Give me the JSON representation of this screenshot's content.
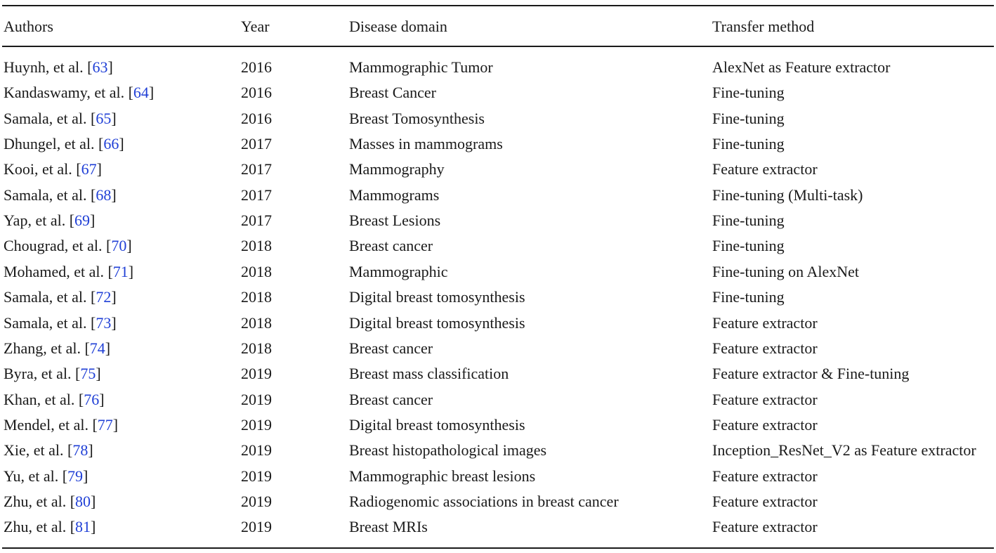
{
  "table": {
    "headers": {
      "authors": "Authors",
      "year": "Year",
      "domain": "Disease domain",
      "method": "Transfer method"
    },
    "rows": [
      {
        "author": "Huynh, et al. ",
        "ref": "63",
        "year": "2016",
        "domain": "Mammographic Tumor",
        "method": "AlexNet as Feature extractor"
      },
      {
        "author": "Kandaswamy, et al. ",
        "ref": "64",
        "year": "2016",
        "domain": "Breast Cancer",
        "method": "Fine-tuning"
      },
      {
        "author": "Samala, et al. ",
        "ref": "65",
        "year": "2016",
        "domain": "Breast Tomosynthesis",
        "method": "Fine-tuning"
      },
      {
        "author": "Dhungel, et al. ",
        "ref": "66",
        "year": "2017",
        "domain": "Masses in mammograms",
        "method": "Fine-tuning"
      },
      {
        "author": "Kooi, et al. ",
        "ref": "67",
        "year": "2017",
        "domain": "Mammography",
        "method": "Feature extractor"
      },
      {
        "author": "Samala, et al. ",
        "ref": "68",
        "year": "2017",
        "domain": "Mammograms",
        "method": "Fine-tuning (Multi-task)"
      },
      {
        "author": "Yap, et al. ",
        "ref": "69",
        "year": "2017",
        "domain": "Breast Lesions",
        "method": "Fine-tuning"
      },
      {
        "author": "Chougrad, et al. ",
        "ref": "70",
        "year": "2018",
        "domain": "Breast cancer",
        "method": "Fine-tuning"
      },
      {
        "author": "Mohamed, et al. ",
        "ref": "71",
        "year": "2018",
        "domain": "Mammographic",
        "method": "Fine-tuning on AlexNet"
      },
      {
        "author": "Samala, et al. ",
        "ref": "72",
        "year": "2018",
        "domain": "Digital breast tomosynthesis",
        "method": "Fine-tuning"
      },
      {
        "author": "Samala, et al. ",
        "ref": "73",
        "year": "2018",
        "domain": "Digital breast tomosynthesis",
        "method": "Feature extractor"
      },
      {
        "author": "Zhang, et al. ",
        "ref": "74",
        "year": "2018",
        "domain": "Breast cancer",
        "method": "Feature extractor"
      },
      {
        "author": "Byra, et al. ",
        "ref": "75",
        "year": "2019",
        "domain": "Breast mass classification",
        "method": "Feature extractor & Fine-tuning"
      },
      {
        "author": "Khan, et al. ",
        "ref": "76",
        "year": "2019",
        "domain": "Breast cancer",
        "method": "Feature extractor"
      },
      {
        "author": "Mendel, et al. ",
        "ref": "77",
        "year": "2019",
        "domain": "Digital breast tomosynthesis",
        "method": "Feature extractor"
      },
      {
        "author": "Xie, et al. ",
        "ref": "78",
        "year": "2019",
        "domain": "Breast histopathological images",
        "method": "Inception_ResNet_V2 as Feature extractor"
      },
      {
        "author": "Yu, et al. ",
        "ref": "79",
        "year": "2019",
        "domain": "Mammographic breast lesions",
        "method": "Feature extractor"
      },
      {
        "author": "Zhu, et al. ",
        "ref": "80",
        "year": "2019",
        "domain": "Radiogenomic associations in breast cancer",
        "method": "Feature extractor"
      },
      {
        "author": "Zhu, et al. ",
        "ref": "81",
        "year": "2019",
        "domain": "Breast MRIs",
        "method": "Feature extractor"
      }
    ]
  },
  "colors": {
    "text": "#1a1a1a",
    "reference_link": "#1f3fd6"
  }
}
